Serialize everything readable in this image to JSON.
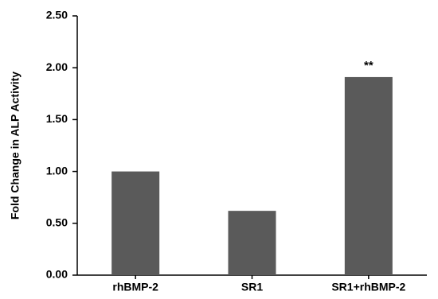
{
  "chart_data": {
    "type": "bar",
    "title": "",
    "xlabel": "",
    "ylabel": "Fold Change in ALP Activity",
    "categories": [
      "rhBMP-2",
      "SR1",
      "SR1+rhBMP-2"
    ],
    "values": [
      1.0,
      0.62,
      1.91
    ],
    "ylim": [
      0,
      2.5
    ],
    "yticks": [
      "0.00",
      "0.50",
      "1.00",
      "1.50",
      "2.00",
      "2.50"
    ],
    "annotations": [
      {
        "category": "SR1+rhBMP-2",
        "text": "**"
      }
    ],
    "grid": false,
    "legend": "none",
    "bar_color": "#5a5a5a",
    "axis_color": "#000000",
    "text_color": "#000000"
  }
}
